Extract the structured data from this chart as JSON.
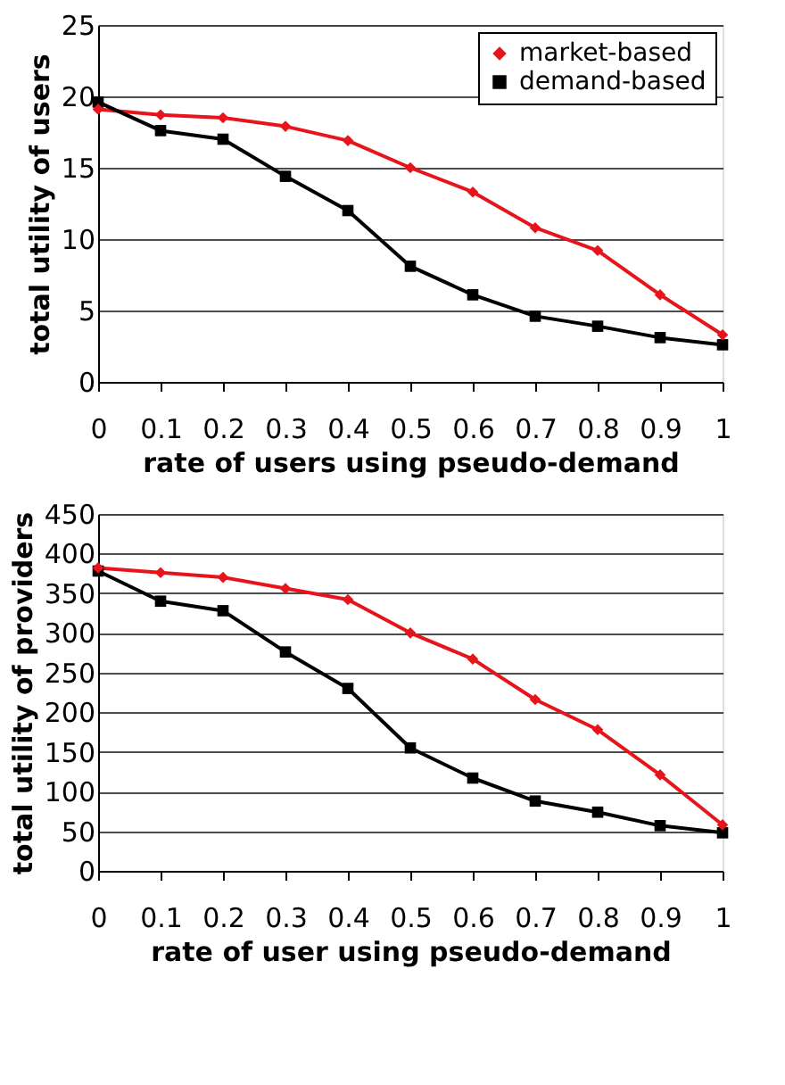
{
  "chart_data": [
    {
      "type": "line",
      "xlabel": "rate of users using pseudo-demand",
      "ylabel": "total utility of users",
      "categories": [
        "0",
        "0.1",
        "0.2",
        "0.3",
        "0.4",
        "0.5",
        "0.6",
        "0.7",
        "0.8",
        "0.9",
        "1"
      ],
      "ylim": [
        0,
        25
      ],
      "yticks": [
        0,
        5,
        10,
        15,
        20,
        25
      ],
      "grid": "y",
      "legend": "top right",
      "series": [
        {
          "name": "market-based",
          "color": "#e8141c",
          "marker": "diamond",
          "values": [
            19.1,
            18.7,
            18.5,
            17.9,
            16.9,
            15.0,
            13.3,
            10.8,
            9.2,
            6.1,
            3.3
          ]
        },
        {
          "name": "demand-based",
          "color": "#000000",
          "marker": "square",
          "values": [
            19.6,
            17.6,
            17.0,
            14.4,
            12.0,
            8.1,
            6.1,
            4.6,
            3.9,
            3.1,
            2.6
          ]
        }
      ]
    },
    {
      "type": "line",
      "xlabel": "rate of user using pseudo-demand",
      "ylabel": "total utility of providers",
      "categories": [
        "0",
        "0.1",
        "0.2",
        "0.3",
        "0.4",
        "0.5",
        "0.6",
        "0.7",
        "0.8",
        "0.9",
        "1"
      ],
      "ylim": [
        0,
        450
      ],
      "yticks": [
        0,
        50,
        100,
        150,
        200,
        250,
        300,
        350,
        400,
        450
      ],
      "grid": "y",
      "legend": "top right",
      "series": [
        {
          "name": "market-based",
          "color": "#e8141c",
          "marker": "diamond",
          "values": [
            382,
            376,
            370,
            356,
            342,
            300,
            267,
            216,
            178,
            121,
            58
          ]
        },
        {
          "name": "demand-based",
          "color": "#000000",
          "marker": "square",
          "values": [
            378,
            340,
            328,
            276,
            230,
            155,
            117,
            88,
            74,
            57,
            48
          ]
        }
      ]
    }
  ]
}
